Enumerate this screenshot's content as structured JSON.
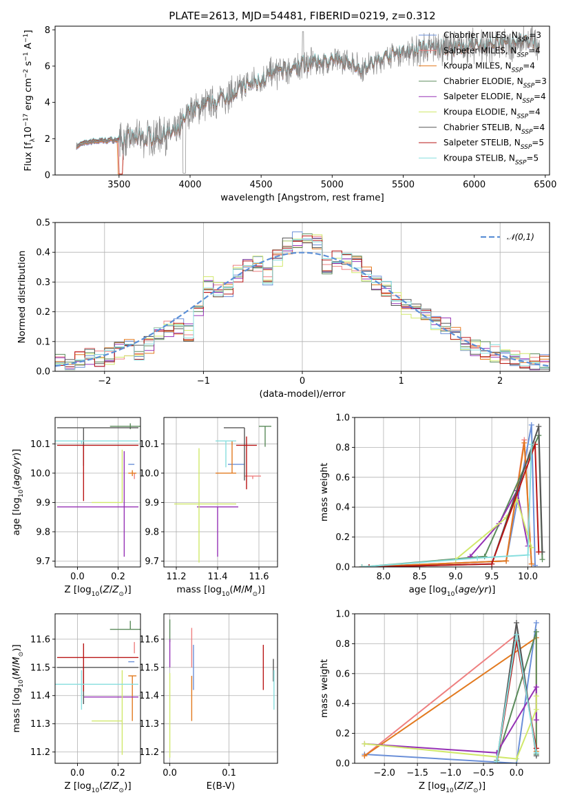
{
  "title": "PLATE=2613, MJD=54481, FIBERID=0219, z=0.312",
  "colors": {
    "Chabrier MILES": "#6a8fd8",
    "Salpeter MILES": "#ee7f7f",
    "Kroupa MILES": "#e2791e",
    "Chabrier ELODIE": "#5a8a5a",
    "Salpeter ELODIE": "#9531b5",
    "Kroupa ELODIE": "#d0e86a",
    "Chabrier STELIB": "#555555",
    "Salpeter STELIB": "#b81414",
    "Kroupa STELIB": "#86dede",
    "normal": "#5b8fd6"
  },
  "chart_data": [
    {
      "id": "spectrum",
      "type": "line",
      "xlabel": "wavelength [Angstrom, rest frame]",
      "ylabel": "Flux [f_λ 10^-17 erg cm^-2 s^-1 A^-1]",
      "xlim": [
        3050,
        6530
      ],
      "ylim": [
        0,
        8.2
      ],
      "xticks": [
        3500,
        4000,
        4500,
        5000,
        5500,
        6000,
        6500
      ],
      "yticks": [
        0,
        2,
        4,
        6,
        8
      ],
      "legend_position": "upper-right",
      "legend": [
        {
          "name": "Chabrier MILES",
          "sub": "SSP",
          "n": "3"
        },
        {
          "name": "Salpeter MILES",
          "sub": "SSP",
          "n": "4"
        },
        {
          "name": "Kroupa MILES",
          "sub": "SSP",
          "n": "4"
        },
        {
          "name": "Chabrier ELODIE",
          "sub": "SSP",
          "n": "3"
        },
        {
          "name": "Salpeter ELODIE",
          "sub": "SSP",
          "n": "4"
        },
        {
          "name": "Kroupa ELODIE",
          "sub": "SSP",
          "n": "4"
        },
        {
          "name": "Chabrier STELIB",
          "sub": "SSP",
          "n": "4"
        },
        {
          "name": "Salpeter STELIB",
          "sub": "SSP",
          "n": "5"
        },
        {
          "name": "Kroupa STELIB",
          "sub": "SSP",
          "n": "5"
        }
      ],
      "continuum": {
        "x": [
          3200,
          3300,
          3500,
          3700,
          3900,
          4000,
          4200,
          4400,
          4600,
          4800,
          5000,
          5150,
          5200,
          5400,
          5600,
          5800,
          6000,
          6200,
          6400
        ],
        "y": [
          1.6,
          1.85,
          1.95,
          2.1,
          2.3,
          3.5,
          4.1,
          4.9,
          5.6,
          6.1,
          6.3,
          6.2,
          5.8,
          6.6,
          6.9,
          7.0,
          7.1,
          7.2,
          7.3
        ]
      },
      "data_noise_by_range": [
        {
          "x": [
            3200,
            3500
          ],
          "amp": 0.15
        },
        {
          "x": [
            3500,
            3950
          ],
          "amp": 0.9
        },
        {
          "x": [
            3950,
            4900
          ],
          "amp": 0.75
        },
        {
          "x": [
            4900,
            5550
          ],
          "amp": 0.6
        },
        {
          "x": [
            5550,
            6460
          ],
          "amp": 0.8
        }
      ]
    },
    {
      "id": "residuals",
      "type": "histogram",
      "xlabel": "(data-model)/error",
      "ylabel": "Normed distribution",
      "xlim": [
        -2.5,
        2.5
      ],
      "ylim": [
        0,
        0.5
      ],
      "xticks": [
        -2,
        -1,
        0,
        1,
        2
      ],
      "yticks": [
        0,
        0.1,
        0.2,
        0.3,
        0.4,
        0.5
      ],
      "grid": true,
      "legend_position": "upper-right",
      "legend": "𝒩(0,1)",
      "bins": {
        "start": -2.5,
        "width": 0.1,
        "count": 50
      },
      "approx_values": [
        0.03,
        0.02,
        0.04,
        0.05,
        0.04,
        0.05,
        0.07,
        0.08,
        0.06,
        0.09,
        0.12,
        0.14,
        0.15,
        0.13,
        0.2,
        0.29,
        0.27,
        0.28,
        0.33,
        0.35,
        0.36,
        0.32,
        0.38,
        0.42,
        0.44,
        0.46,
        0.43,
        0.35,
        0.38,
        0.37,
        0.36,
        0.33,
        0.3,
        0.28,
        0.25,
        0.22,
        0.2,
        0.18,
        0.16,
        0.15,
        0.12,
        0.1,
        0.08,
        0.07,
        0.06,
        0.05,
        0.04,
        0.04,
        0.03,
        0.03
      ]
    },
    {
      "id": "age_vs_Z",
      "type": "scatter",
      "xlabel": "Z [log10(Z/Z⊙)]",
      "ylabel": "age  [log10(age/yr)]",
      "xlim": [
        -0.11,
        0.31
      ],
      "ylim": [
        9.68,
        10.19
      ],
      "xticks": [
        0,
        0.2
      ],
      "yticks": [
        9.7,
        9.8,
        9.9,
        10.0,
        10.1
      ],
      "grid": true,
      "points": [
        {
          "model": "Chabrier MILES",
          "x": 0.28,
          "y": 10.03,
          "xerr": [
            0.03,
            0.0
          ],
          "yerr": [
            0.0,
            0.0
          ]
        },
        {
          "model": "Salpeter MILES",
          "x": 0.28,
          "y": 9.99,
          "xerr": [
            0.0,
            0.0
          ],
          "yerr": [
            0.01,
            0.01
          ]
        },
        {
          "model": "Kroupa MILES",
          "x": 0.27,
          "y": 10.0,
          "xerr": [
            0.02,
            0.02
          ],
          "yerr": [
            0.01,
            0.01
          ]
        },
        {
          "model": "Chabrier ELODIE",
          "x": 0.26,
          "y": 10.16,
          "xerr": [
            0.1,
            0.05
          ],
          "yerr": [
            0.01,
            0.01
          ]
        },
        {
          "model": "Salpeter ELODIE",
          "x": 0.23,
          "y": 9.885,
          "xerr": [
            0.33,
            0.07
          ],
          "yerr": [
            0.17,
            0.19
          ]
        },
        {
          "model": "Kroupa ELODIE",
          "x": 0.22,
          "y": 9.9,
          "xerr": [
            0.15,
            0.0
          ],
          "yerr": [
            0.0,
            0.18
          ]
        },
        {
          "model": "Chabrier STELIB",
          "x": 0.03,
          "y": 10.155,
          "xerr": [
            0.13,
            0.27
          ],
          "yerr": [
            0.13,
            0.0
          ]
        },
        {
          "model": "Salpeter STELIB",
          "x": 0.03,
          "y": 10.095,
          "xerr": [
            0.13,
            0.27
          ],
          "yerr": [
            0.19,
            0.0
          ]
        },
        {
          "model": "Kroupa STELIB",
          "x": 0.02,
          "y": 10.11,
          "xerr": [
            0.13,
            0.28
          ],
          "yerr": [
            0.01,
            0.0
          ]
        }
      ]
    },
    {
      "id": "age_vs_mass",
      "type": "scatter",
      "xlabel": "mass [log10(M/M⊙)]",
      "ylabel": "",
      "xlim": [
        11.14,
        11.69
      ],
      "ylim": [
        9.68,
        10.19
      ],
      "xticks": [
        11.2,
        11.4,
        11.6
      ],
      "yticks": [
        9.7,
        9.8,
        9.9,
        10.0,
        10.1
      ],
      "grid": true,
      "points": [
        {
          "model": "Chabrier MILES",
          "x": 11.45,
          "y": 10.03,
          "xerr": [
            0.0,
            0.08
          ],
          "yerr": [
            0.0,
            0.0
          ]
        },
        {
          "model": "Salpeter MILES",
          "x": 11.57,
          "y": 9.99,
          "xerr": [
            0.04,
            0.04
          ],
          "yerr": [
            0.01,
            0.0
          ]
        },
        {
          "model": "Kroupa MILES",
          "x": 11.47,
          "y": 10.0,
          "xerr": [
            0.08,
            0.02
          ],
          "yerr": [
            0.0,
            0.11
          ]
        },
        {
          "model": "Chabrier ELODIE",
          "x": 11.63,
          "y": 10.16,
          "xerr": [
            0.03,
            0.03
          ],
          "yerr": [
            0.07,
            0.0
          ]
        },
        {
          "model": "Salpeter ELODIE",
          "x": 11.4,
          "y": 9.885,
          "xerr": [
            0.1,
            0.1
          ],
          "yerr": [
            0.17,
            0.0
          ]
        },
        {
          "model": "Kroupa ELODIE",
          "x": 11.31,
          "y": 9.895,
          "xerr": [
            0.12,
            0.18
          ],
          "yerr": [
            0.2,
            0.19
          ]
        },
        {
          "model": "Chabrier STELIB",
          "x": 11.53,
          "y": 10.155,
          "xerr": [
            0.1,
            0.0
          ],
          "yerr": [
            0.18,
            0.0
          ]
        },
        {
          "model": "Salpeter STELIB",
          "x": 11.54,
          "y": 10.095,
          "xerr": [
            0.05,
            0.05
          ],
          "yerr": [
            0.15,
            0.03
          ]
        },
        {
          "model": "Kroupa STELIB",
          "x": 11.44,
          "y": 10.11,
          "xerr": [
            0.05,
            0.05
          ],
          "yerr": [
            0.09,
            0.0
          ]
        }
      ]
    },
    {
      "id": "weight_vs_age",
      "type": "line",
      "xlabel": "age  [log10(age/yr)]",
      "ylabel": "mass weight",
      "xlim": [
        7.6,
        10.3
      ],
      "ylim": [
        0,
        1
      ],
      "xticks": [
        8.0,
        8.5,
        9.0,
        9.5,
        10.0
      ],
      "yticks": [
        0,
        0.2,
        0.4,
        0.6,
        0.8,
        1.0
      ],
      "grid": true,
      "series": [
        {
          "name": "Chabrier MILES",
          "x": [
            7.7,
            9.7,
            10.05,
            10.1
          ],
          "y": [
            0.0,
            0.04,
            0.95,
            0.01
          ]
        },
        {
          "name": "Salpeter MILES",
          "x": [
            7.7,
            9.7,
            9.95,
            10.05
          ],
          "y": [
            0.0,
            0.04,
            0.85,
            0.02
          ]
        },
        {
          "name": "Kroupa MILES",
          "x": [
            7.7,
            9.7,
            9.95,
            10.05
          ],
          "y": [
            0.0,
            0.04,
            0.83,
            0.02
          ]
        },
        {
          "name": "Chabrier ELODIE",
          "x": [
            7.7,
            9.4,
            10.15,
            10.2
          ],
          "y": [
            0.0,
            0.07,
            0.88,
            0.05
          ]
        },
        {
          "name": "Salpeter ELODIE",
          "x": [
            9.2,
            9.6,
            9.85,
            10.0
          ],
          "y": [
            0.07,
            0.29,
            0.51,
            0.14
          ]
        },
        {
          "name": "Kroupa ELODIE",
          "x": [
            9.0,
            9.7,
            9.85,
            10.05
          ],
          "y": [
            0.05,
            0.33,
            0.45,
            0.13
          ]
        },
        {
          "name": "Chabrier STELIB",
          "x": [
            7.8,
            9.5,
            10.15,
            10.2
          ],
          "y": [
            0.0,
            0.02,
            0.94,
            0.1
          ]
        },
        {
          "name": "Salpeter STELIB",
          "x": [
            7.8,
            9.5,
            10.1,
            10.15
          ],
          "y": [
            0.0,
            0.02,
            0.82,
            0.1
          ]
        },
        {
          "name": "Kroupa STELIB",
          "x": [
            7.7,
            9.3,
            10.0,
            10.05
          ],
          "y": [
            0.0,
            0.06,
            0.08,
            0.82
          ]
        }
      ]
    },
    {
      "id": "mass_vs_Z",
      "type": "scatter",
      "xlabel": "Z [log10(Z/Z⊙)]",
      "ylabel": "mass [log10(M/M⊙)]",
      "xlim": [
        -0.11,
        0.31
      ],
      "ylim": [
        11.16,
        11.69
      ],
      "xticks": [
        0,
        0.2
      ],
      "yticks": [
        11.2,
        11.3,
        11.4,
        11.5,
        11.6
      ],
      "grid": true,
      "points": [
        {
          "model": "Chabrier MILES",
          "x": 0.28,
          "y": 11.52,
          "xerr": [
            0.03,
            0.0
          ],
          "yerr": [
            0.0,
            0.0
          ]
        },
        {
          "model": "Salpeter MILES",
          "x": 0.28,
          "y": 11.57,
          "xerr": [
            0.0,
            0.0
          ],
          "yerr": [
            0.02,
            0.02
          ]
        },
        {
          "model": "Kroupa MILES",
          "x": 0.27,
          "y": 11.47,
          "xerr": [
            0.02,
            0.02
          ],
          "yerr": [
            0.16,
            0.0
          ]
        },
        {
          "model": "Chabrier ELODIE",
          "x": 0.26,
          "y": 11.635,
          "xerr": [
            0.1,
            0.05
          ],
          "yerr": [
            0.0,
            0.03
          ]
        },
        {
          "model": "Salpeter ELODIE",
          "x": 0.23,
          "y": 11.395,
          "xerr": [
            0.2,
            0.07
          ],
          "yerr": [
            0.0,
            0.0
          ]
        },
        {
          "model": "Kroupa ELODIE",
          "x": 0.22,
          "y": 11.31,
          "xerr": [
            0.15,
            0.0
          ],
          "yerr": [
            0.12,
            0.18
          ]
        },
        {
          "model": "Chabrier STELIB",
          "x": 0.03,
          "y": 11.5,
          "xerr": [
            0.13,
            0.27
          ],
          "yerr": [
            0.13,
            0.0
          ]
        },
        {
          "model": "Salpeter STELIB",
          "x": 0.03,
          "y": 11.535,
          "xerr": [
            0.13,
            0.27
          ],
          "yerr": [
            0.12,
            0.05
          ]
        },
        {
          "model": "Kroupa STELIB",
          "x": 0.02,
          "y": 11.44,
          "xerr": [
            0.13,
            0.28
          ],
          "yerr": [
            0.09,
            0.05
          ]
        }
      ]
    },
    {
      "id": "mass_vs_EBV",
      "type": "scatter",
      "xlabel": "E(B-V)",
      "ylabel": "",
      "xlim": [
        -0.01,
        0.182
      ],
      "ylim": [
        11.16,
        11.69
      ],
      "xticks": [
        0.0,
        0.1
      ],
      "yticks": [
        11.2,
        11.3,
        11.4,
        11.5,
        11.6
      ],
      "grid": true,
      "points": [
        {
          "model": "Chabrier MILES",
          "x": 0.04,
          "y": 11.52,
          "xerr": [
            0,
            0
          ],
          "yerr": [
            0.1,
            0.06
          ]
        },
        {
          "model": "Salpeter MILES",
          "x": 0.037,
          "y": 11.57,
          "xerr": [
            0,
            0
          ],
          "yerr": [
            0.07,
            0.07
          ]
        },
        {
          "model": "Kroupa MILES",
          "x": 0.037,
          "y": 11.47,
          "xerr": [
            0,
            0
          ],
          "yerr": [
            0.16,
            0.0
          ]
        },
        {
          "model": "Chabrier ELODIE",
          "x": 0.0,
          "y": 11.63,
          "xerr": [
            0,
            0
          ],
          "yerr": [
            0.04,
            0.04
          ]
        },
        {
          "model": "Salpeter ELODIE",
          "x": 0.0,
          "y": 11.55,
          "xerr": [
            0,
            0
          ],
          "yerr": [
            0.05,
            0.05
          ]
        },
        {
          "model": "Kroupa ELODIE",
          "x": 0.0,
          "y": 11.33,
          "xerr": [
            0,
            0
          ],
          "yerr": [
            0.15,
            0.15
          ]
        },
        {
          "model": "Chabrier STELIB",
          "x": 0.175,
          "y": 11.49,
          "xerr": [
            0,
            0
          ],
          "yerr": [
            0.04,
            0.04
          ]
        },
        {
          "model": "Salpeter STELIB",
          "x": 0.158,
          "y": 11.5,
          "xerr": [
            0,
            0
          ],
          "yerr": [
            0.08,
            0.08
          ]
        },
        {
          "model": "Kroupa STELIB",
          "x": 0.176,
          "y": 11.42,
          "xerr": [
            0,
            0
          ],
          "yerr": [
            0.07,
            0.07
          ]
        }
      ]
    },
    {
      "id": "weight_vs_Z",
      "type": "line",
      "xlabel": "Z [log10(Z/Z⊙)]",
      "ylabel": "mass weight",
      "xlim": [
        -2.45,
        0.5
      ],
      "ylim": [
        0,
        1
      ],
      "xticks": [
        -2.0,
        -1.5,
        -1.0,
        -0.5,
        0.0
      ],
      "yticks": [
        0,
        0.2,
        0.4,
        0.6,
        0.8,
        1.0
      ],
      "grid": true,
      "series": [
        {
          "name": "Chabrier MILES",
          "x": [
            -2.3,
            0.0,
            0.3
          ],
          "y": [
            0.06,
            0.0,
            0.94
          ]
        },
        {
          "name": "Salpeter MILES",
          "x": [
            -2.3,
            0.0,
            0.3
          ],
          "y": [
            0.05,
            0.86,
            0.1
          ]
        },
        {
          "name": "Kroupa MILES",
          "x": [
            -2.3,
            0.3,
            0.3
          ],
          "y": [
            0.05,
            0.84,
            0.08
          ]
        },
        {
          "name": "Chabrier ELODIE",
          "x": [
            -0.3,
            0.3,
            0.3
          ],
          "y": [
            0.02,
            0.88,
            0.06
          ]
        },
        {
          "name": "Salpeter ELODIE",
          "x": [
            -2.3,
            -0.3,
            0.3,
            0.3
          ],
          "y": [
            0.13,
            0.07,
            0.51,
            0.29
          ]
        },
        {
          "name": "Kroupa ELODIE",
          "x": [
            -2.3,
            0.0,
            0.3,
            0.3
          ],
          "y": [
            0.13,
            0.03,
            0.36,
            0.45
          ]
        },
        {
          "name": "Chabrier STELIB",
          "x": [
            -0.3,
            0.0,
            0.3
          ],
          "y": [
            0.0,
            0.94,
            0.05
          ]
        },
        {
          "name": "Salpeter STELIB",
          "x": [
            -0.3,
            0.0,
            0.3
          ],
          "y": [
            0.0,
            0.82,
            0.1
          ]
        },
        {
          "name": "Kroupa STELIB",
          "x": [
            -0.3,
            0.0,
            0.3
          ],
          "y": [
            0.01,
            0.86,
            0.07
          ]
        }
      ]
    }
  ]
}
